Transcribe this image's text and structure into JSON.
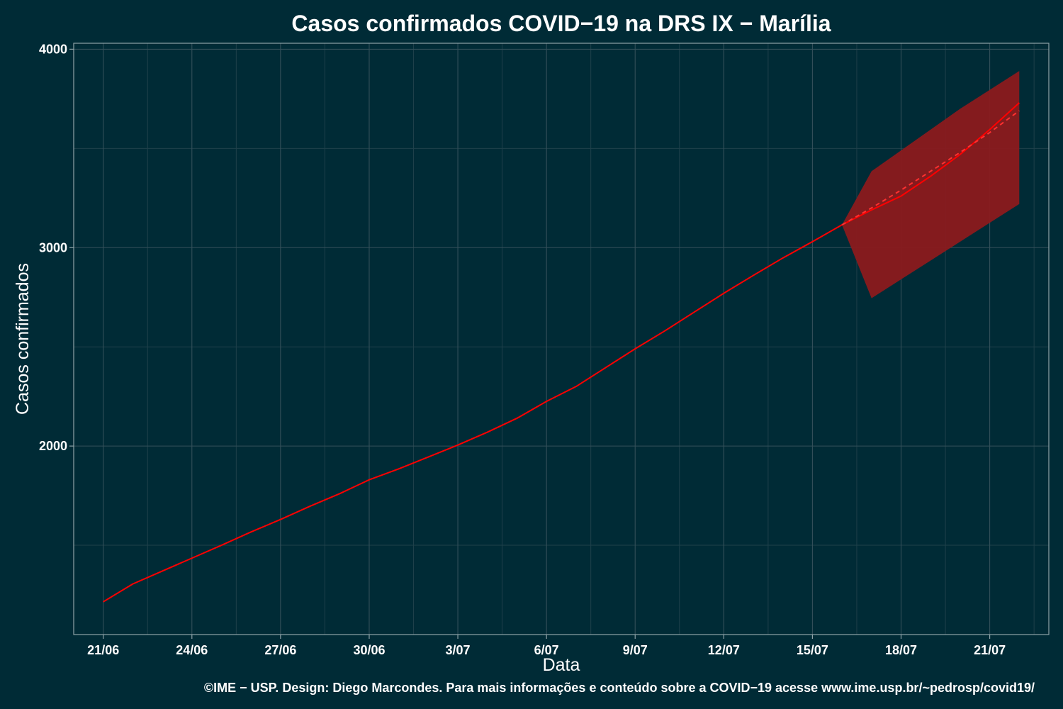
{
  "caption": "©IME − USP. Design: Diego Marcondes. Para mais informações e conteúdo sobre a COVID−19 acesse www.ime.usp.br/~pedrosp/covid19/",
  "colors": {
    "background": "#002b36",
    "observed_line": "#ff0000",
    "prediction_line": "#ff3030",
    "interval_fill": "#8b1a1d"
  },
  "chart_data": {
    "type": "line",
    "title": "Casos confirmados COVID−19 na DRS IX − Marília",
    "xlabel": "Data",
    "ylabel": "Casos confirmados",
    "x_tick_labels": [
      "21/06",
      "24/06",
      "27/06",
      "30/06",
      "3/07",
      "6/07",
      "9/07",
      "12/07",
      "15/07",
      "18/07",
      "21/07"
    ],
    "y_ticks": [
      2000,
      3000,
      4000
    ],
    "ylim": [
      1050,
      4030
    ],
    "x_dates": [
      "2020-06-21",
      "2020-06-22",
      "2020-06-23",
      "2020-06-24",
      "2020-06-25",
      "2020-06-26",
      "2020-06-27",
      "2020-06-28",
      "2020-06-29",
      "2020-06-30",
      "2020-07-01",
      "2020-07-02",
      "2020-07-03",
      "2020-07-04",
      "2020-07-05",
      "2020-07-06",
      "2020-07-07",
      "2020-07-08",
      "2020-07-09",
      "2020-07-10",
      "2020-07-11",
      "2020-07-12",
      "2020-07-13",
      "2020-07-14",
      "2020-07-15",
      "2020-07-16",
      "2020-07-17",
      "2020-07-18",
      "2020-07-19",
      "2020-07-20",
      "2020-07-21",
      "2020-07-22"
    ],
    "x_range": [
      "2020-06-20",
      "2020-07-23"
    ],
    "grid": true,
    "legend": "none",
    "series": [
      {
        "values": [
          1215,
          1305,
          1370,
          1435,
          1500,
          1567,
          1630,
          1697,
          1760,
          1830,
          1885,
          1945,
          2005,
          2070,
          2140,
          2225,
          2300,
          2395,
          2490,
          2580,
          2675,
          2770,
          2860,
          2948,
          3030,
          3115,
          3190,
          3260,
          3360,
          3470,
          3595,
          3730
        ]
      },
      {
        "start": "2020-07-16",
        "values": [
          3115,
          3200,
          3290,
          3385,
          3480,
          3580,
          3690
        ],
        "dashed": true
      },
      {
        "start": "2020-07-16",
        "lower": [
          3115,
          2745,
          2840,
          2935,
          3030,
          3125,
          3220
        ],
        "upper": [
          3115,
          3385,
          3490,
          3595,
          3700,
          3795,
          3890
        ],
        "fill": true
      }
    ]
  }
}
